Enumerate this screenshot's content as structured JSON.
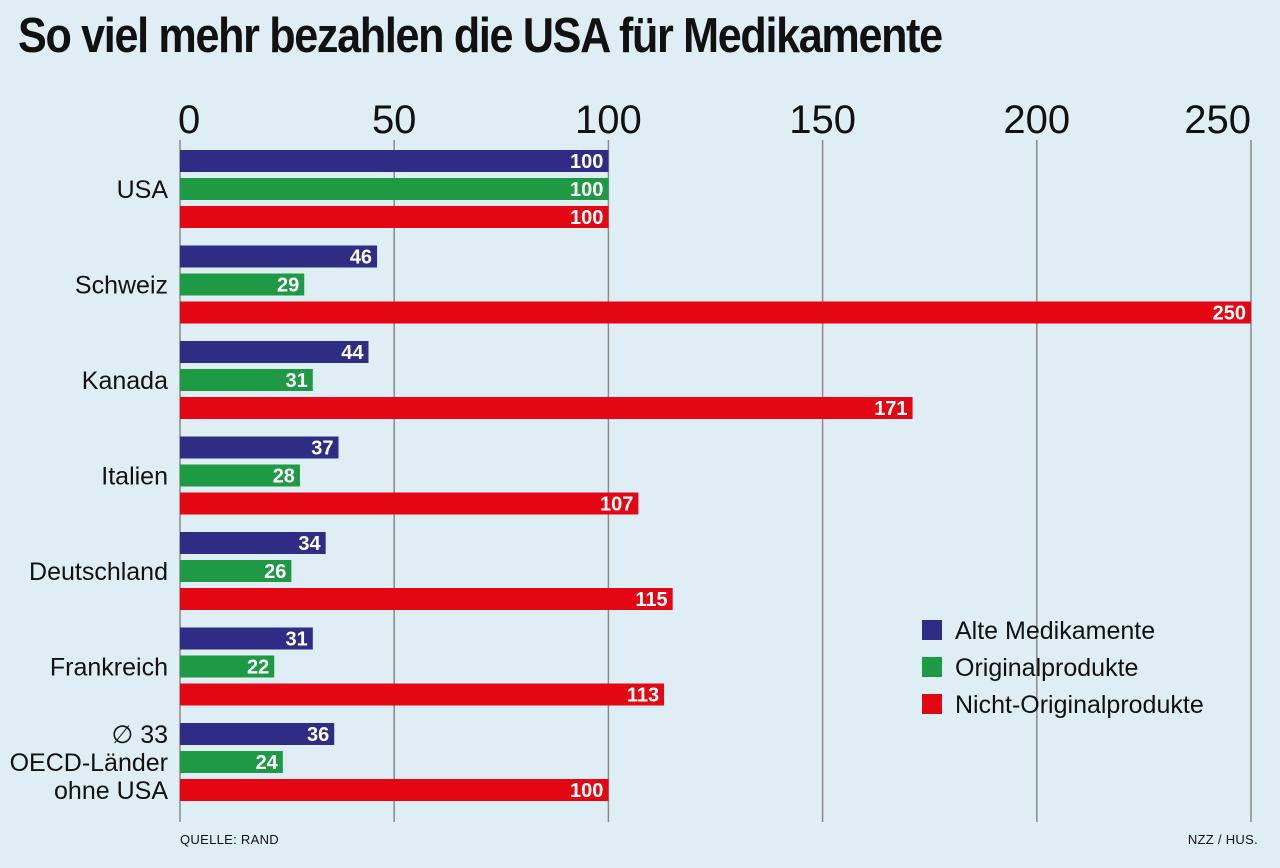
{
  "chart_data": {
    "type": "bar",
    "orientation": "horizontal",
    "title": "So viel mehr bezahlen die USA für Medikamente",
    "xlim": [
      0,
      250
    ],
    "xticks": [
      0,
      50,
      100,
      150,
      200,
      250
    ],
    "grid": true,
    "legend_position": "bottom-right",
    "categories": [
      [
        "USA"
      ],
      [
        "Schweiz"
      ],
      [
        "Kanada"
      ],
      [
        "Italien"
      ],
      [
        "Deutschland"
      ],
      [
        "Frankreich"
      ],
      [
        "∅ 33",
        "OECD-Länder",
        "ohne USA"
      ]
    ],
    "series": [
      {
        "name": "Alte Medikamente",
        "color": "#2e2c85",
        "values": [
          100,
          46,
          44,
          37,
          34,
          31,
          36
        ]
      },
      {
        "name": "Originalprodukte",
        "color": "#1e9a44",
        "values": [
          100,
          29,
          31,
          28,
          26,
          22,
          24
        ]
      },
      {
        "name": "Nicht-Originalprodukte",
        "color": "#e30613",
        "values": [
          100,
          250,
          171,
          107,
          115,
          113,
          100
        ]
      }
    ]
  },
  "footer": {
    "source": "QUELLE: RAND",
    "credit": "NZZ / HUS."
  }
}
